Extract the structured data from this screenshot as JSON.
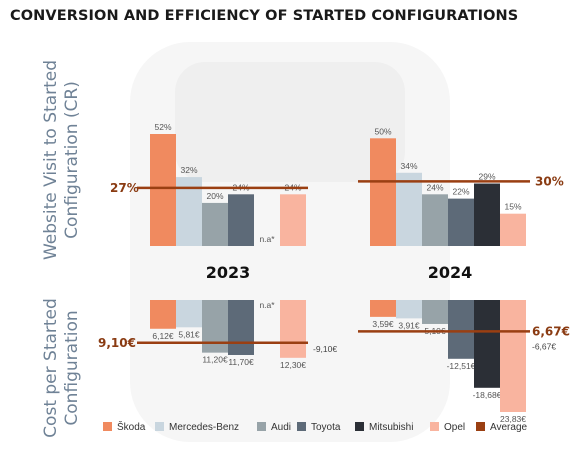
{
  "title": "CONVERSION AND EFFICIENCY OF STARTED CONFIGURATIONS",
  "chart_data": {
    "type": "bar",
    "categories": [
      "2023",
      "2024"
    ],
    "brands": [
      "Škoda",
      "Mercedes-Benz",
      "Audi",
      "Toyota",
      "Mitsubishi",
      "Opel"
    ],
    "colors": {
      "Škoda": "#f08a5f",
      "Mercedes-Benz": "#c9d6df",
      "Audi": "#97a3a8",
      "Toyota": "#5d6a78",
      "Mitsubishi": "#2b2f36",
      "Opel": "#f9b49f",
      "Average": "#9a3f12"
    },
    "panels": [
      {
        "ylabel": "Website Visit to Started Configuration (CR)",
        "average": {
          "2023": "27%",
          "2024": "30%"
        },
        "series": [
          {
            "name": "Škoda",
            "values": [
              52,
              50
            ],
            "labels": [
              "52%",
              "50%"
            ]
          },
          {
            "name": "Mercedes-Benz",
            "values": [
              32,
              34
            ],
            "labels": [
              "32%",
              "34%"
            ]
          },
          {
            "name": "Audi",
            "values": [
              20,
              24
            ],
            "labels": [
              "20%",
              "24%"
            ]
          },
          {
            "name": "Toyota",
            "values": [
              24,
              22
            ],
            "labels": [
              "24%",
              "22%"
            ]
          },
          {
            "name": "Mitsubishi",
            "values": [
              null,
              29
            ],
            "labels": [
              "n.a*",
              "29%"
            ]
          },
          {
            "name": "Opel",
            "values": [
              24,
              15
            ],
            "labels": [
              "24%",
              "15%"
            ]
          }
        ],
        "average_values": [
          27,
          30
        ]
      },
      {
        "ylabel": "Cost per Started Configuration",
        "average": {
          "2023": "9,10€",
          "2024": "6,67€"
        },
        "average_side": {
          "2023": "-9,10€",
          "2024": "-6,67€"
        },
        "series": [
          {
            "name": "Škoda",
            "values": [
              6.12,
              3.59
            ],
            "labels": [
              "6,12€",
              "3,59€"
            ]
          },
          {
            "name": "Mercedes-Benz",
            "values": [
              5.81,
              3.91
            ],
            "labels": [
              "5,81€",
              "3,91€"
            ]
          },
          {
            "name": "Audi",
            "values": [
              11.2,
              5.1
            ],
            "labels": [
              "11,20€",
              "5,10€"
            ]
          },
          {
            "name": "Toyota",
            "values": [
              11.7,
              12.51
            ],
            "labels": [
              "11,70€",
              "-12,51€"
            ]
          },
          {
            "name": "Mitsubishi",
            "values": [
              null,
              18.68
            ],
            "labels": [
              "n.a*",
              "-18,68€"
            ]
          },
          {
            "name": "Opel",
            "values": [
              12.3,
              23.83
            ],
            "labels": [
              "12,30€",
              "23,83€"
            ]
          }
        ],
        "average_values": [
          9.1,
          6.67
        ]
      }
    ],
    "legend": [
      "Škoda",
      "Mercedes-Benz",
      "Audi",
      "Toyota",
      "Mitsubishi",
      "Opel",
      "Average"
    ],
    "legend_position": "bottom"
  }
}
